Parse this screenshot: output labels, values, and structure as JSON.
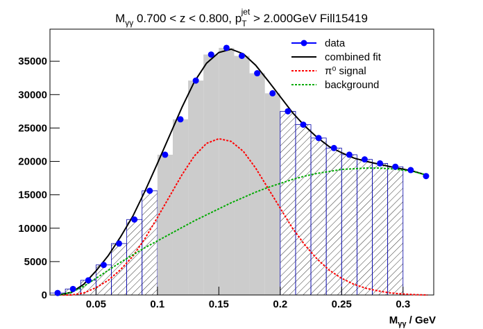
{
  "chart_data": {
    "type": "histogram-fit",
    "title": [
      "M",
      "γγ",
      " 0.700 < z < 0.800, p",
      "T",
      "jet",
      " > 2.000GeV Fill15419"
    ],
    "x_label": [
      "M",
      "γγ",
      " / GeV"
    ],
    "bin_start": 0.0125,
    "bin_width": 0.0125,
    "hatch_end": 0.3,
    "window": [
      0.1,
      0.2
    ],
    "xlim": [
      0.0125,
      0.325
    ],
    "ylim": [
      0,
      39800
    ],
    "xticks": [
      0.05,
      0.1,
      0.15,
      0.2,
      0.25,
      0.3
    ],
    "yticks": [
      0,
      5000,
      10000,
      15000,
      20000,
      25000,
      30000,
      35000
    ],
    "data": {
      "name": "data",
      "color": "#0000ff",
      "values": [
        300,
        900,
        2200,
        4500,
        7700,
        11300,
        15600,
        21000,
        26300,
        32100,
        36000,
        37000,
        35800,
        33200,
        30200,
        27500,
        25500,
        23500,
        22000,
        21000,
        20300,
        19700,
        19200,
        18700,
        17800
      ]
    },
    "curve_x": [
      0.02,
      0.03,
      0.04,
      0.05,
      0.06,
      0.07,
      0.08,
      0.09,
      0.1,
      0.11,
      0.12,
      0.13,
      0.14,
      0.15,
      0.16,
      0.17,
      0.18,
      0.19,
      0.2,
      0.21,
      0.22,
      0.23,
      0.24,
      0.25,
      0.26,
      0.27,
      0.28,
      0.29,
      0.3,
      0.31,
      0.32
    ],
    "series": [
      {
        "name": "combined fit",
        "color": "#000000",
        "dash": false,
        "values": [
          0,
          400,
          1600,
          3600,
          5900,
          8700,
          11800,
          15600,
          19700,
          23900,
          28100,
          31900,
          34700,
          36300,
          36800,
          36100,
          34400,
          32100,
          29700,
          27300,
          25300,
          23600,
          22200,
          21300,
          20500,
          20000,
          19600,
          19200,
          18850,
          18450,
          17900
        ]
      },
      {
        "name": "π⁰ signal",
        "color": "#ff0000",
        "dash": true,
        "values": [
          0,
          0,
          300,
          1100,
          2200,
          3800,
          5800,
          8500,
          11600,
          14800,
          18000,
          20800,
          22700,
          23400,
          23000,
          21500,
          19000,
          16000,
          13000,
          10000,
          7500,
          5400,
          3700,
          2500,
          1600,
          1000,
          600,
          300,
          150,
          50,
          0
        ]
      },
      {
        "name": "background",
        "color": "#00aa00",
        "dash": true,
        "values": [
          0,
          400,
          1300,
          2500,
          3700,
          4900,
          6000,
          7100,
          8100,
          9100,
          10100,
          11100,
          12000,
          12900,
          13800,
          14600,
          15400,
          16100,
          16700,
          17300,
          17800,
          18200,
          18500,
          18800,
          18900,
          19000,
          19000,
          18900,
          18700,
          18400,
          17900
        ]
      }
    ]
  }
}
